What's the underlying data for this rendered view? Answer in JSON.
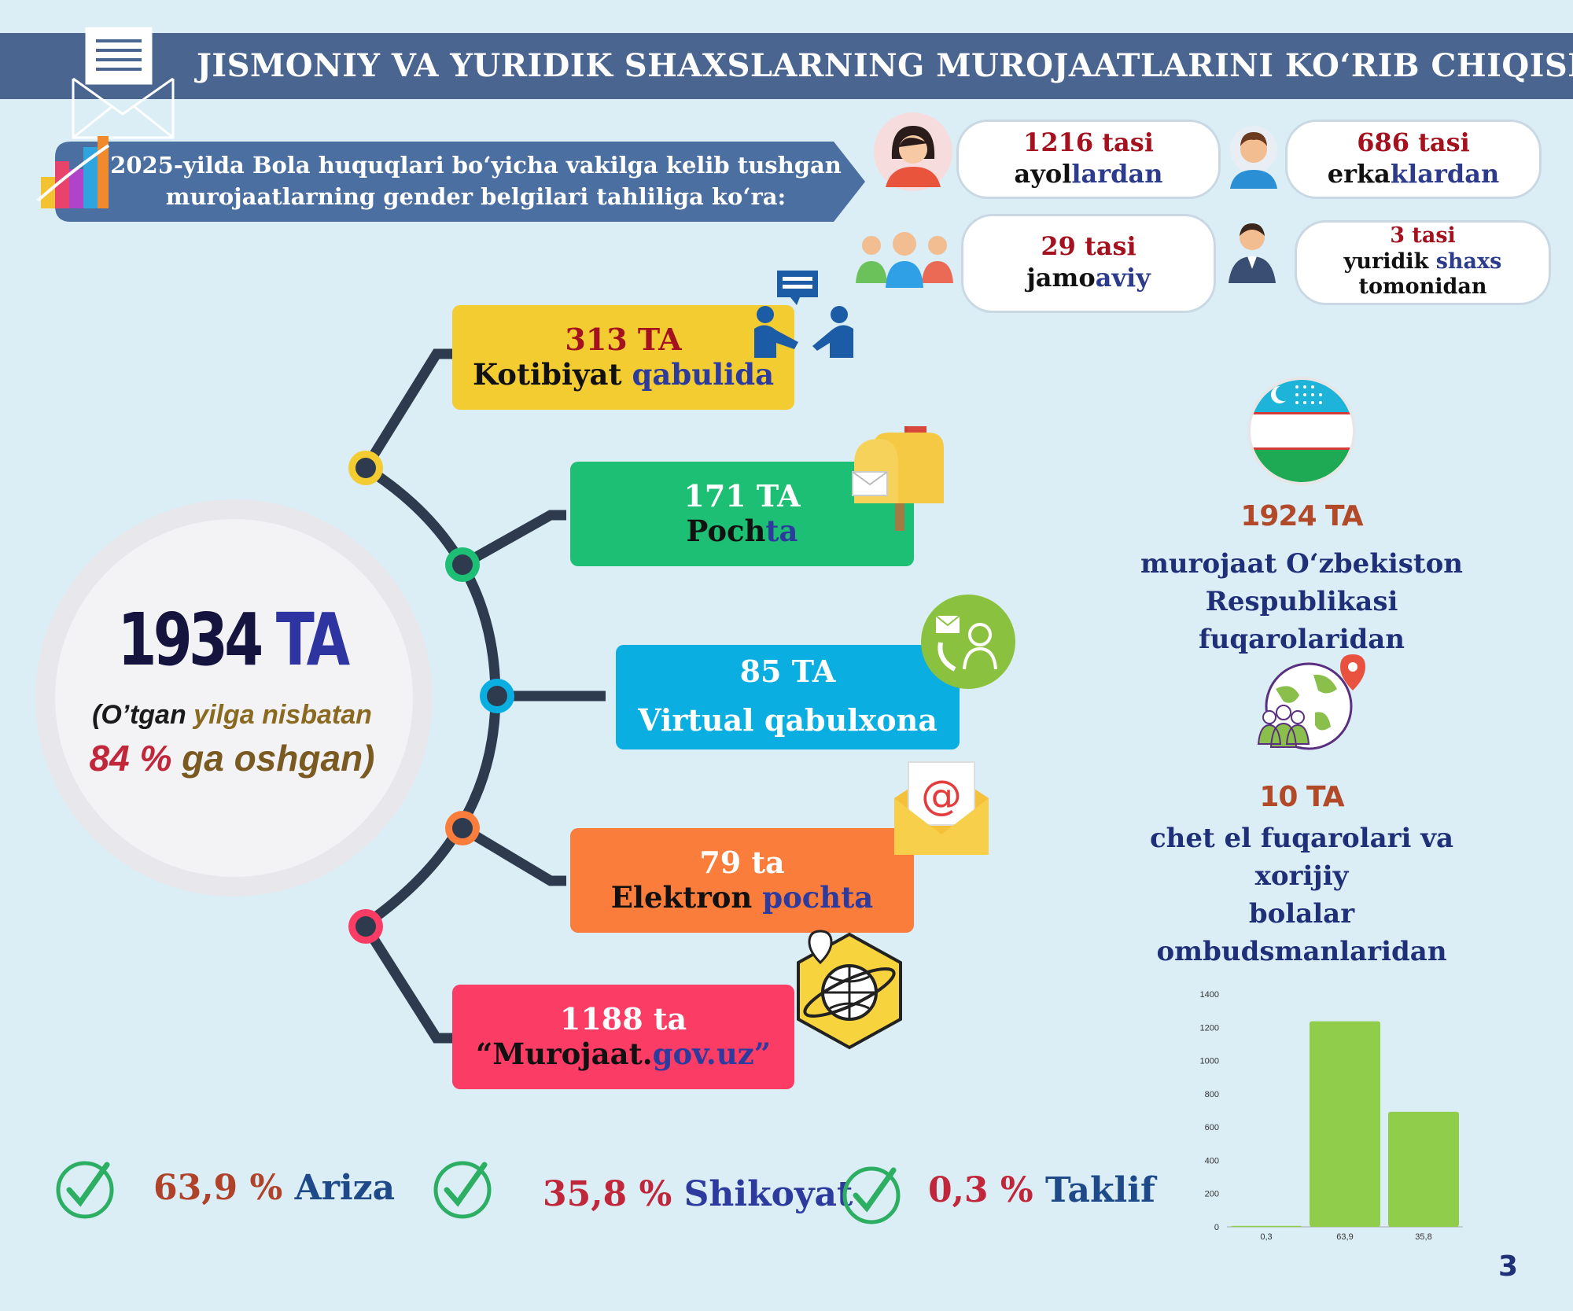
{
  "header": {
    "title": "JISMONIY VA YURIDIK SHAXSLARNING MUROJAATLARINI KO‘RIB CHIQISH"
  },
  "subtitle": {
    "line1": "2025-yilda Bola huquqlari bo‘yicha vakilga kelib tushgan",
    "line2": "murojaatlarning gender belgilari tahliliga ko‘ra:"
  },
  "gender": {
    "women": {
      "num": "1216 tasi",
      "w1": "ayol",
      "w2": "lardan"
    },
    "men": {
      "num": "686 tasi",
      "w1": "erka",
      "w2": "klardan"
    },
    "collective": {
      "num": "29 tasi",
      "w1": "jamo",
      "w2": "aviy"
    },
    "legal": {
      "num": "3 tasi",
      "w1": "yuridik ",
      "w2": "shaxs",
      "w3": "tomonidan"
    }
  },
  "total": {
    "num": "1934",
    "unit": "TA",
    "line1_a": "(O’tgan ",
    "line1_b": "yilga nisbatan",
    "pct": "84 %",
    "line2_rest": " ga oshgan)"
  },
  "channels": [
    {
      "num": "313 TA",
      "label_a": "Kotibiyat ",
      "label_b": "qabulida",
      "color": "#f2cc30"
    },
    {
      "num": "171 TA",
      "label_a": "Poch",
      "label_b": "ta",
      "color": "#1dbf74"
    },
    {
      "num": "85 TA",
      "label_a": "Virtual qabulxona",
      "label_b": "",
      "color": "#0aaee0"
    },
    {
      "num": "79 ta",
      "label_a": "Elektron ",
      "label_b": "pochta",
      "color": "#fb7d3c"
    },
    {
      "num": "1188 ta",
      "label_a": "“Murojaat.",
      "label_b": "gov.uz”",
      "color": "#fb3d66"
    }
  ],
  "right_stats": {
    "citizens": {
      "num": "1924 TA",
      "line1": "murojaat O‘zbekiston",
      "line2": "Respublikasi fuqarolaridan"
    },
    "foreign": {
      "num": "10  TA",
      "line1": "chet el fuqarolari va xorijiy",
      "line2": "bolalar ombudsmanlaridan"
    }
  },
  "types": [
    {
      "pct": "63,9 %",
      "name": "Ariza"
    },
    {
      "pct": "35,8 %",
      "name": "Shikoyat"
    },
    {
      "pct": "0,3 %",
      "name": "Taklif"
    }
  ],
  "chart_data": {
    "type": "bar",
    "categories": [
      "0,3",
      "63,9",
      "35,8"
    ],
    "values": [
      6,
      1236,
      692
    ],
    "ylim": [
      0,
      1400
    ],
    "yticks": [
      "0",
      "200",
      "400",
      "600",
      "800",
      "1000",
      "1200",
      "1400"
    ],
    "grid": false,
    "color": "#8fcd4a"
  },
  "page_number": "3",
  "colors": {
    "header": "#4a6590",
    "background": "#dbeef6",
    "accent_red": "#a3121e",
    "accent_navy": "#25236b"
  }
}
